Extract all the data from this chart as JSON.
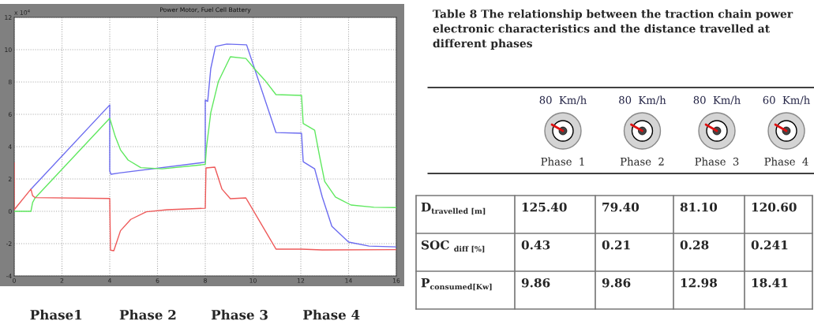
{
  "chart_data": [
    {
      "type": "line",
      "title": "Power Motor, Fuel Cell Battery",
      "xlim": [
        0,
        16
      ],
      "xticks": [
        0,
        2,
        4,
        6,
        8,
        10,
        12,
        14,
        16
      ],
      "ylim": [
        -4,
        12
      ],
      "yticks": [
        -4,
        -2,
        0,
        2,
        4,
        6,
        8,
        10,
        12
      ],
      "grid": true,
      "annotations": [
        "x 10$^{4}$",
        "Phase1",
        "Phase 2",
        "Phase 3",
        "Phase 4"
      ],
      "series": [
        {
          "color": "#6b6bf0",
          "x": [
            0.7,
            4.0,
            4.0,
            4.05,
            4.4,
            8.0,
            8.0,
            8.1,
            8.23,
            8.43,
            8.9,
            9.73,
            10.96,
            12.03,
            12.1,
            12.58,
            12.9,
            13.3,
            14.0,
            14.86,
            16
          ],
          "values": [
            1.37,
            6.58,
            2.5,
            2.29,
            2.37,
            3.04,
            6.88,
            6.8,
            8.83,
            10.2,
            10.35,
            10.3,
            4.87,
            4.83,
            3.07,
            2.63,
            0.88,
            -0.93,
            -1.9,
            -2.15,
            -2.2
          ]
        },
        {
          "color": "#5fe85f",
          "x": [
            0,
            0.7,
            0.77,
            0.87,
            4.0,
            4.23,
            4.45,
            4.77,
            5.3,
            6.2,
            8.0,
            8.05,
            8.23,
            8.55,
            9.05,
            9.7,
            10.14,
            10.5,
            10.96,
            12.03,
            12.1,
            12.58,
            12.8,
            13.0,
            13.45,
            14.1,
            15.06,
            16
          ],
          "values": [
            0,
            0,
            0.54,
            0.82,
            5.76,
            4.63,
            3.8,
            3.17,
            2.7,
            2.63,
            2.9,
            3.95,
            6.1,
            8.04,
            9.56,
            9.46,
            8.68,
            8.1,
            7.22,
            7.17,
            5.43,
            5.02,
            3.3,
            1.85,
            0.88,
            0.39,
            0.25,
            0.23
          ]
        },
        {
          "color": "#ee5a5a",
          "x": [
            0,
            0,
            0.7,
            0.77,
            0.87,
            4.0,
            4.03,
            4.17,
            4.45,
            4.88,
            5.53,
            6.4,
            8.0,
            8.03,
            8.4,
            8.7,
            9.05,
            9.7,
            10.96,
            12.03,
            12.9,
            16
          ],
          "values": [
            3.0,
            0.1,
            1.37,
            0.97,
            0.85,
            0.79,
            -2.4,
            -2.44,
            -1.2,
            -0.5,
            -0.03,
            0.1,
            0.19,
            2.68,
            2.73,
            1.37,
            0.78,
            0.83,
            -2.34,
            -2.34,
            -2.39,
            -2.37
          ]
        }
      ]
    },
    {
      "type": "other",
      "title": "Table 8 The relationship between the traction chain power electronic characteristics and the distance travelled at different phases",
      "categories": [
        "Phase  1",
        "Phase  2",
        "Phase  3",
        "Phase  4"
      ],
      "annotations": [
        "80  Km/h",
        "80  Km/h",
        "80  Km/h",
        "60  Km/h"
      ],
      "y_categories": [
        "D$_{travelled [m]}$",
        "SOC $_{diff [%]}$",
        "P$_{consumed[Kw]}$"
      ],
      "cell_labels": [
        [
          "125.40",
          "79.40",
          "81.10",
          "120.60"
        ],
        [
          "0.43",
          "0.21",
          "0.28",
          "0.241"
        ],
        [
          "9.86",
          "9.86",
          "12.98",
          "18.41"
        ]
      ]
    }
  ]
}
